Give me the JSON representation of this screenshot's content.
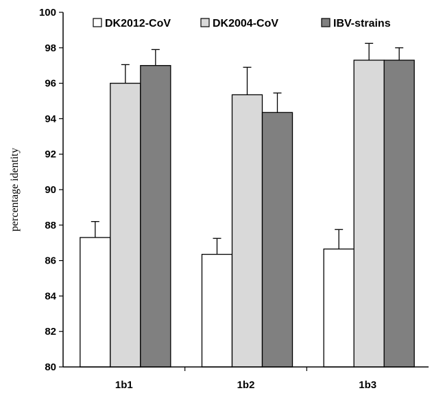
{
  "chart_data": {
    "type": "bar",
    "categories": [
      "1b1",
      "1b2",
      "1b3"
    ],
    "series": [
      {
        "name": "DK2012-CoV",
        "values": [
          87.3,
          86.35,
          86.65
        ],
        "errors": [
          0.9,
          0.9,
          1.1
        ],
        "color": "#ffffff"
      },
      {
        "name": "DK2004-CoV",
        "values": [
          96.0,
          95.35,
          97.3
        ],
        "errors": [
          1.05,
          1.55,
          0.95
        ],
        "color": "#d9d9d9"
      },
      {
        "name": "IBV-strains",
        "values": [
          97.0,
          94.35,
          97.3
        ],
        "errors": [
          0.9,
          1.1,
          0.7
        ],
        "color": "#808080"
      }
    ],
    "title": "",
    "xlabel": "",
    "ylabel": "percentage identity",
    "ylim": [
      80,
      100
    ],
    "yticks": [
      80,
      82,
      84,
      86,
      88,
      90,
      92,
      94,
      96,
      98,
      100
    ],
    "grid": false,
    "legend_position": "top"
  }
}
